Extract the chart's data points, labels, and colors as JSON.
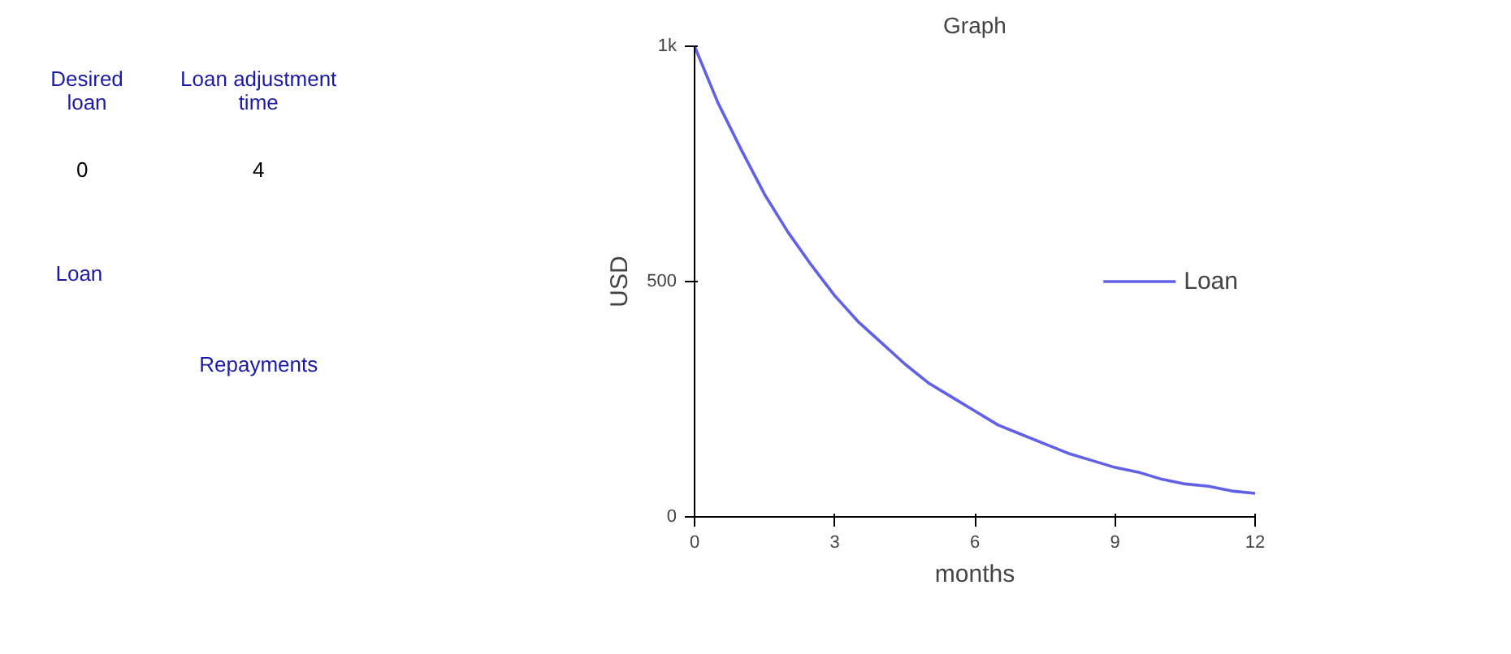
{
  "chart_data": [
    {
      "type": "other",
      "annotations": [
        "Desired\nloan",
        "0",
        "Loan adjustment\ntime",
        "4",
        "Loan",
        "Repayments"
      ]
    },
    {
      "type": "line",
      "title": "Graph",
      "xlabel": "months",
      "ylabel": "USD",
      "x": [
        0,
        0.5,
        1,
        1.5,
        2,
        2.5,
        3,
        3.5,
        4,
        4.5,
        5,
        5.5,
        6,
        6.5,
        7,
        7.5,
        8,
        8.5,
        9,
        9.5,
        10,
        10.5,
        11,
        11.5,
        12
      ],
      "series": [
        {
          "name": "Loan",
          "color": "#6060e8",
          "values": [
            1000,
            880,
            780,
            685,
            605,
            535,
            470,
            415,
            370,
            325,
            285,
            255,
            225,
            195,
            175,
            155,
            135,
            120,
            105,
            95,
            80,
            70,
            65,
            55,
            50
          ]
        }
      ],
      "xlim": [
        0,
        12
      ],
      "ylim": [
        0,
        1000
      ],
      "xticks": [
        0,
        3,
        6,
        9,
        12
      ],
      "yticks": [
        0,
        500,
        {
          "value": 1000,
          "label": "1k"
        }
      ],
      "grid": false,
      "legend": "right",
      "marker": "none",
      "line_style": "solid"
    }
  ]
}
